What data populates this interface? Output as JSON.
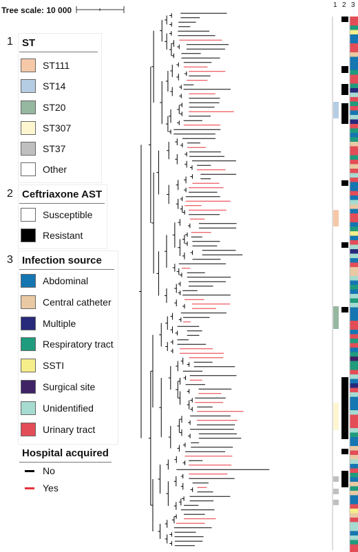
{
  "tree_scale": {
    "label": "Tree scale: 10 000"
  },
  "track_headers": [
    "1",
    "2",
    "3"
  ],
  "legends": {
    "st": {
      "number": "1",
      "title": "ST",
      "items": [
        {
          "label": "ST111",
          "color": "#f5c8a8"
        },
        {
          "label": "ST14",
          "color": "#b5cde3"
        },
        {
          "label": "ST20",
          "color": "#96b7a0"
        },
        {
          "label": "ST307",
          "color": "#fdf6d1"
        },
        {
          "label": "ST37",
          "color": "#bfbfbf"
        },
        {
          "label": "Other",
          "color": "#ffffff"
        }
      ]
    },
    "ceftriaxone": {
      "number": "2",
      "title": "Ceftriaxone AST",
      "items": [
        {
          "label": "Susceptible",
          "color": "#ffffff"
        },
        {
          "label": "Resistant",
          "color": "#000000"
        }
      ]
    },
    "source": {
      "number": "3",
      "title": "Infection source",
      "items": [
        {
          "label": "Abdominal",
          "color": "#1576b1"
        },
        {
          "label": "Central catheter",
          "color": "#e9c9a3"
        },
        {
          "label": "Multiple",
          "color": "#27297a"
        },
        {
          "label": "Respiratory tract",
          "color": "#1f9b7d"
        },
        {
          "label": "SSTI",
          "color": "#f6ee89"
        },
        {
          "label": "Surgical site",
          "color": "#3f2365"
        },
        {
          "label": "Unidentified",
          "color": "#a6dbd1"
        },
        {
          "label": "Urinary tract",
          "color": "#e24d57"
        }
      ]
    },
    "hospital": {
      "title": "Hospital acquired",
      "items": [
        {
          "label": "No",
          "color": "#000000"
        },
        {
          "label": "Yes",
          "color": "#e8303a"
        }
      ]
    }
  }
}
